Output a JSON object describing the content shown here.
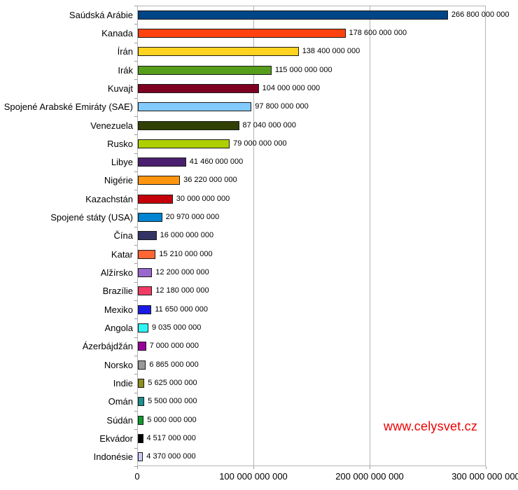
{
  "page": {
    "background": "#ffffff"
  },
  "watermark": {
    "text": "www.celysvet.cz",
    "color": "#ee0000"
  },
  "style": {
    "axis_color": "#9a9a9a",
    "grid_color": "#b4b4b4",
    "bar_border_color": "#1a1a1a",
    "text_color": "#000000"
  },
  "chart_data": {
    "type": "bar",
    "orientation": "horizontal",
    "title": "",
    "xlabel": "",
    "ylabel": "",
    "legend": "none",
    "grid": "vertical major gridlines",
    "xlim": [
      0,
      300000000000
    ],
    "x_tick_values": [
      0,
      100000000000,
      200000000000,
      300000000000
    ],
    "x_tick_labels": [
      "0",
      "100 000 000 000",
      "200 000 000 000",
      "300 000 000 000"
    ],
    "categories": [
      "Saúdská Arábie",
      "Kanada",
      "Írán",
      "Irák",
      "Kuvajt",
      "Spojené Arabské Emiráty (SAE)",
      "Venezuela",
      "Rusko",
      "Libye",
      "Nigérie",
      "Kazachstán",
      "Spojené státy (USA)",
      "Čína",
      "Katar",
      "Alžírsko",
      "Brazílie",
      "Mexiko",
      "Angola",
      "Ázerbájdžán",
      "Norsko",
      "Indie",
      "Omán",
      "Súdán",
      "Ekvádor",
      "Indonésie"
    ],
    "values": [
      266800000000,
      178600000000,
      138400000000,
      115000000000,
      104000000000,
      97800000000,
      87040000000,
      79000000000,
      41460000000,
      36220000000,
      30000000000,
      20970000000,
      16000000000,
      15210000000,
      12200000000,
      12180000000,
      11650000000,
      9035000000,
      7000000000,
      6865000000,
      5625000000,
      5500000000,
      5000000000,
      4517000000,
      4370000000
    ],
    "value_labels": [
      "266 800 000 000",
      "178 600 000 000",
      "138 400 000 000",
      "115 000 000 000",
      "104 000 000 000",
      "97 800 000 000",
      "87 040 000 000",
      "79 000 000 000",
      "41 460 000 000",
      "36 220 000 000",
      "30 000 000 000",
      "20 970 000 000",
      "16 000 000 000",
      "15 210 000 000",
      "12 200 000 000",
      "12 180 000 000",
      "11 650 000 000",
      "9 035 000 000",
      "7 000 000 000",
      "6 865 000 000",
      "5 625 000 000",
      "5 500 000 000",
      "5 000 000 000",
      "4 517 000 000",
      "4 370 000 000"
    ],
    "bar_colors": [
      "#004586",
      "#FF420E",
      "#FFD320",
      "#579D1C",
      "#7E0021",
      "#83CAFF",
      "#314004",
      "#AECF00",
      "#4B1F6F",
      "#FF950E",
      "#C5000B",
      "#0084D1",
      "#333366",
      "#FF6633",
      "#9966CC",
      "#F03C64",
      "#1A1AE6",
      "#2EF5F5",
      "#990099",
      "#999999",
      "#8F8F1F",
      "#218F8F",
      "#0B9E2A",
      "#000000",
      "#CCCCFF"
    ]
  }
}
